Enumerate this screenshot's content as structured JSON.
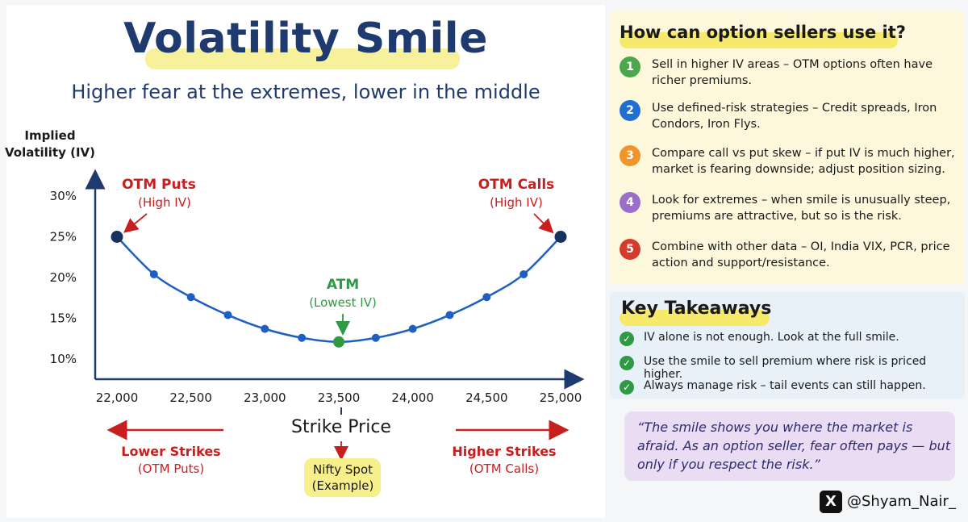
{
  "title": "Volatility Smile",
  "subtitle": "Higher fear at the extremes, lower in the middle",
  "colors": {
    "curve": "#1f5fc4",
    "dot": "#1f5fc4",
    "end_dot": "#17325e",
    "atm": "#2e9a43",
    "red": "#c81e1e",
    "navy": "#1e3a6e"
  },
  "chart_data": {
    "type": "line",
    "ylabel_line1": "Implied",
    "ylabel_line2": "Volatility (IV)",
    "xlabel": "Strike Price",
    "x": [
      22000,
      22250,
      22500,
      22750,
      23000,
      23250,
      23500,
      23750,
      24000,
      24250,
      24500,
      24750,
      25000
    ],
    "y": [
      25,
      20.4,
      17.6,
      15.4,
      13.7,
      12.6,
      12.1,
      12.6,
      13.7,
      15.4,
      17.6,
      20.4,
      25
    ],
    "xlim": [
      22000,
      25000
    ],
    "ylim": [
      8,
      33
    ],
    "x_ticks": [
      22000,
      22500,
      23000,
      23500,
      24000,
      24500,
      25000
    ],
    "x_tick_labels": [
      "22,000",
      "22,500",
      "23,000",
      "23,500",
      "24,000",
      "24,500",
      "25,000"
    ],
    "y_ticks": [
      10,
      15,
      20,
      25,
      30
    ],
    "y_tick_labels": [
      "10%",
      "15%",
      "20%",
      "25%",
      "30%"
    ],
    "annotations": {
      "otm_puts": "OTM Puts",
      "otm_puts_sub": "(High IV)",
      "otm_calls": "OTM Calls",
      "otm_calls_sub": "(High IV)",
      "atm": "ATM",
      "atm_sub": "(Lowest IV)",
      "lower_strikes": "Lower Strikes",
      "lower_strikes_sub": "(OTM Puts)",
      "higher_strikes": "Higher Strikes",
      "higher_strikes_sub": "(OTM Calls)",
      "spot": "Nifty Spot",
      "spot_sub": "(Example)"
    }
  },
  "sellers": {
    "title": "How can option sellers use it?",
    "tips": [
      {
        "num": "1",
        "color": "#4aa84a",
        "text": "Sell in higher IV areas – OTM options often have richer premiums."
      },
      {
        "num": "2",
        "color": "#1f6fd1",
        "text": "Use defined-risk strategies – Credit spreads, Iron Condors, Iron Flys."
      },
      {
        "num": "3",
        "color": "#f0952a",
        "text": "Compare call vs put skew – if put IV is much higher, market is fearing downside; adjust position sizing."
      },
      {
        "num": "4",
        "color": "#9b6fc9",
        "text": "Look for extremes – when smile is unusually steep, premiums are attractive, but so is the risk."
      },
      {
        "num": "5",
        "color": "#d63a2a",
        "text": "Combine with other data – OI, India VIX, PCR, price action and support/resistance."
      }
    ]
  },
  "takeaways": {
    "title": "Key Takeaways",
    "items": [
      "IV alone is not enough. Look at the full smile.",
      "Use the smile to sell premium where risk is priced higher.",
      "Always manage risk – tail events can still happen."
    ]
  },
  "quote": "“The smile shows you where the market is afraid. As an option seller, fear often pays — but only if you respect the risk.”",
  "handle": {
    "logo": "X",
    "name": "@Shyam_Nair_"
  }
}
